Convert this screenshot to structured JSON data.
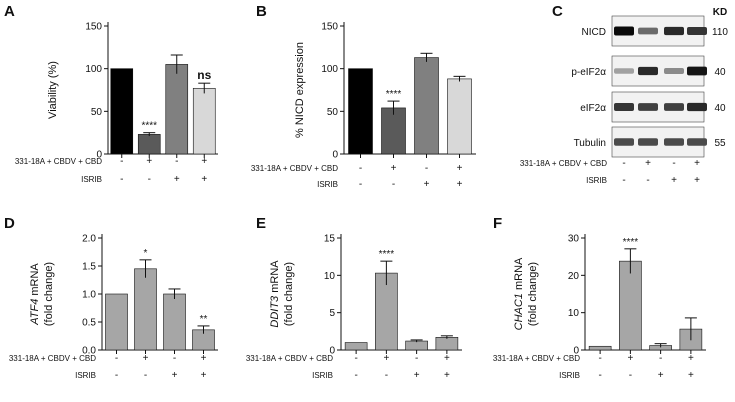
{
  "panel_letters": {
    "A": "A",
    "B": "B",
    "C": "C",
    "D": "D",
    "E": "E",
    "F": "F"
  },
  "condition_labels": {
    "treatment": "331-18A + CBDV + CBD",
    "inhibitor": "ISRIB"
  },
  "conditions": {
    "treatment": [
      "-",
      "+",
      "-",
      "+"
    ],
    "inhibitor": [
      "-",
      "-",
      "+",
      "+"
    ]
  },
  "chart_data": [
    {
      "panel": "A",
      "type": "bar",
      "ylabel": {
        "pre": "",
        "italic": "",
        "post": "Viability (%)"
      },
      "ylim": [
        0,
        150
      ],
      "yticks": [
        0,
        50,
        100,
        150
      ],
      "yticklabels": [
        "0",
        "50",
        "100",
        "150"
      ],
      "values": [
        100,
        23,
        105,
        77
      ],
      "errors": [
        0,
        2,
        11,
        6
      ],
      "colors": [
        "#000000",
        "#5a5a5a",
        "#808080",
        "#d8d8d8"
      ],
      "significance": [
        "",
        "****",
        "",
        "ns"
      ]
    },
    {
      "panel": "B",
      "type": "bar",
      "ylabel": {
        "pre": "",
        "italic": "",
        "post": "% NICD expression"
      },
      "ylim": [
        0,
        150
      ],
      "yticks": [
        0,
        50,
        100,
        150
      ],
      "yticklabels": [
        "0",
        "50",
        "100",
        "150"
      ],
      "values": [
        100,
        54,
        113,
        88
      ],
      "errors": [
        0,
        8,
        5,
        3
      ],
      "colors": [
        "#000000",
        "#5a5a5a",
        "#808080",
        "#d8d8d8"
      ],
      "significance": [
        "",
        "****",
        "",
        ""
      ]
    },
    {
      "panel": "D",
      "type": "bar",
      "ylabel": {
        "pre": "",
        "italic": "ATF4",
        "post": " mRNA",
        "line2": "(fold change)"
      },
      "ylim": [
        0,
        2.0
      ],
      "yticks": [
        0,
        0.5,
        1.0,
        1.5,
        2.0
      ],
      "yticklabels": [
        "0.0",
        "0.5",
        "1.0",
        "1.5",
        "2.0"
      ],
      "values": [
        1.0,
        1.45,
        1.0,
        0.36
      ],
      "errors": [
        0,
        0.16,
        0.09,
        0.07
      ],
      "colors": [
        "#a6a6a6",
        "#a6a6a6",
        "#a6a6a6",
        "#a6a6a6"
      ],
      "significance": [
        "",
        "*",
        "",
        "**"
      ]
    },
    {
      "panel": "E",
      "type": "bar",
      "ylabel": {
        "pre": "",
        "italic": "DDIT3",
        "post": " mRNA",
        "line2": "(fold change)"
      },
      "ylim": [
        0,
        15
      ],
      "yticks": [
        0,
        5,
        10,
        15
      ],
      "yticklabels": [
        "0",
        "5",
        "10",
        "15"
      ],
      "values": [
        1.0,
        10.3,
        1.2,
        1.7
      ],
      "errors": [
        0,
        1.6,
        0.15,
        0.2
      ],
      "colors": [
        "#a6a6a6",
        "#a6a6a6",
        "#a6a6a6",
        "#a6a6a6"
      ],
      "significance": [
        "",
        "****",
        "",
        ""
      ]
    },
    {
      "panel": "F",
      "type": "bar",
      "ylabel": {
        "pre": "",
        "italic": "CHAC1",
        "post": " mRNA",
        "line2": "(fold change)"
      },
      "ylim": [
        0,
        30
      ],
      "yticks": [
        0,
        10,
        20,
        30
      ],
      "yticklabels": [
        "0",
        "10",
        "20",
        "30"
      ],
      "values": [
        1.0,
        23.8,
        1.2,
        5.6
      ],
      "errors": [
        0,
        3.3,
        0.5,
        3.0
      ],
      "colors": [
        "#a6a6a6",
        "#a6a6a6",
        "#a6a6a6",
        "#a6a6a6"
      ],
      "significance": [
        "",
        "****",
        "",
        ""
      ]
    }
  ],
  "western_blot": {
    "kd_label": "KD",
    "rows": [
      {
        "name": "NICD",
        "kd": "110",
        "lane_intensity": [
          1.0,
          0.55,
          0.85,
          0.8
        ]
      },
      {
        "name": "p-eIF2α",
        "kd": "40",
        "lane_intensity": [
          0.3,
          0.85,
          0.4,
          0.95
        ]
      },
      {
        "name": "eIF2α",
        "kd": "40",
        "lane_intensity": [
          0.8,
          0.75,
          0.75,
          0.85
        ]
      },
      {
        "name": "Tubulin",
        "kd": "55",
        "lane_intensity": [
          0.7,
          0.7,
          0.7,
          0.7
        ]
      }
    ]
  }
}
